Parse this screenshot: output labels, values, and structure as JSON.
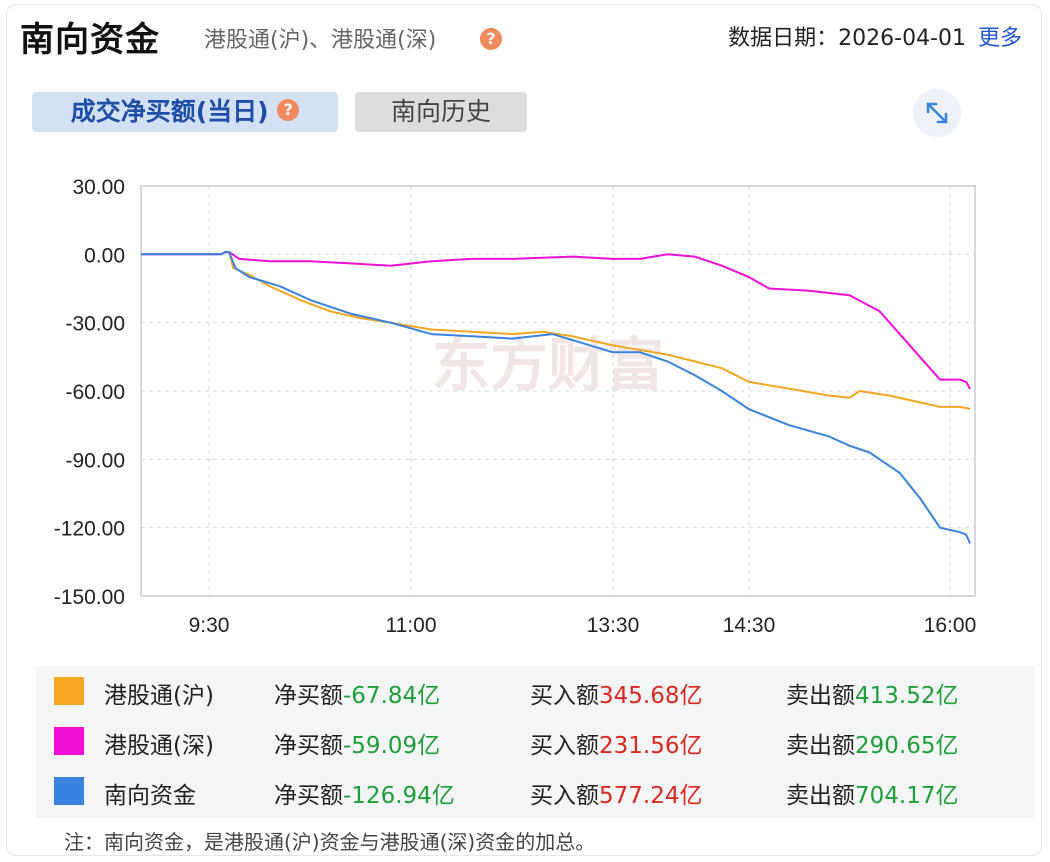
{
  "header": {
    "title": "南向资金",
    "subtitle": "港股通(沪)、港股通(深)",
    "date_label": "数据日期：2026-04-01",
    "more": "更多"
  },
  "tabs": [
    {
      "label": "成交净买额(当日)",
      "active": true
    },
    {
      "label": "南向历史",
      "active": false
    }
  ],
  "watermark": "东方财富",
  "legend": [
    {
      "name": "港股通(沪)",
      "color": "#f5a623",
      "net_label": "净买额",
      "net_value": "-67.84亿",
      "buy_label": "买入额",
      "buy_value": "345.68亿",
      "sell_label": "卖出额",
      "sell_value": "413.52亿"
    },
    {
      "name": "港股通(深)",
      "color": "#f00fd6",
      "net_label": "净买额",
      "net_value": "-59.09亿",
      "buy_label": "买入额",
      "buy_value": "231.56亿",
      "sell_label": "卖出额",
      "sell_value": "290.65亿"
    },
    {
      "name": "南向资金",
      "color": "#3a82e0",
      "net_label": "净买额",
      "net_value": "-126.94亿",
      "buy_label": "买入额",
      "buy_value": "577.24亿",
      "sell_label": "卖出额",
      "sell_value": "704.17亿"
    }
  ],
  "note": "注：南向资金，是港股通(沪)资金与港股通(深)资金的加总。",
  "chart_data": {
    "type": "line",
    "x_ticks": [
      "9:30",
      "11:00",
      "13:30",
      "14:30",
      "16:00"
    ],
    "y_ticks": [
      "30.00",
      "0.00",
      "-30.00",
      "-60.00",
      "-90.00",
      "-120.00",
      "-150.00"
    ],
    "ylim": [
      -150,
      30
    ],
    "grid": true,
    "series": [
      {
        "name": "港股通(沪)",
        "color": "#f5a623",
        "points": [
          [
            0,
            0
          ],
          [
            0.06,
            0
          ],
          [
            0.08,
            1
          ],
          [
            0.1,
            1
          ],
          [
            0.12,
            -6
          ],
          [
            0.2,
            -9
          ],
          [
            0.3,
            -14
          ],
          [
            0.45,
            -20
          ],
          [
            0.6,
            -25
          ],
          [
            0.75,
            -28
          ],
          [
            0.9,
            -30
          ],
          [
            1.1,
            -33
          ],
          [
            1.3,
            -34
          ],
          [
            1.5,
            -35
          ],
          [
            1.65,
            -34
          ],
          [
            1.8,
            -36
          ],
          [
            2.0,
            -40
          ],
          [
            2.2,
            -42
          ],
          [
            2.4,
            -44
          ],
          [
            2.6,
            -47
          ],
          [
            2.8,
            -50
          ],
          [
            3.0,
            -56
          ],
          [
            3.2,
            -59
          ],
          [
            3.4,
            -62
          ],
          [
            3.5,
            -63
          ],
          [
            3.55,
            -60
          ],
          [
            3.7,
            -62
          ],
          [
            3.85,
            -65
          ],
          [
            3.95,
            -67
          ],
          [
            4.05,
            -67
          ],
          [
            4.1,
            -67.84
          ]
        ]
      },
      {
        "name": "港股通(深)",
        "color": "#f00fd6",
        "points": [
          [
            0,
            0
          ],
          [
            0.06,
            0
          ],
          [
            0.08,
            1
          ],
          [
            0.1,
            1
          ],
          [
            0.15,
            -2
          ],
          [
            0.3,
            -3
          ],
          [
            0.5,
            -3
          ],
          [
            0.7,
            -4
          ],
          [
            0.9,
            -5
          ],
          [
            1.1,
            -3
          ],
          [
            1.3,
            -2
          ],
          [
            1.5,
            -2
          ],
          [
            1.8,
            -1
          ],
          [
            2.0,
            -2
          ],
          [
            2.2,
            -2
          ],
          [
            2.4,
            0
          ],
          [
            2.6,
            -1
          ],
          [
            2.8,
            -5
          ],
          [
            3.0,
            -10
          ],
          [
            3.1,
            -15
          ],
          [
            3.3,
            -16
          ],
          [
            3.5,
            -18
          ],
          [
            3.65,
            -25
          ],
          [
            3.8,
            -40
          ],
          [
            3.9,
            -50
          ],
          [
            3.95,
            -55
          ],
          [
            4.05,
            -55
          ],
          [
            4.08,
            -56
          ],
          [
            4.1,
            -59.09
          ]
        ]
      },
      {
        "name": "南向资金",
        "color": "#3a82e0",
        "points": [
          [
            0,
            0
          ],
          [
            0.06,
            0
          ],
          [
            0.08,
            1
          ],
          [
            0.1,
            1
          ],
          [
            0.13,
            -6
          ],
          [
            0.2,
            -10
          ],
          [
            0.35,
            -14
          ],
          [
            0.5,
            -20
          ],
          [
            0.7,
            -26
          ],
          [
            0.9,
            -30
          ],
          [
            1.1,
            -35
          ],
          [
            1.3,
            -36
          ],
          [
            1.5,
            -37
          ],
          [
            1.7,
            -35
          ],
          [
            1.85,
            -39
          ],
          [
            2.0,
            -43
          ],
          [
            2.2,
            -43
          ],
          [
            2.4,
            -47
          ],
          [
            2.6,
            -53
          ],
          [
            2.8,
            -60
          ],
          [
            3.0,
            -68
          ],
          [
            3.2,
            -75
          ],
          [
            3.4,
            -80
          ],
          [
            3.5,
            -84
          ],
          [
            3.6,
            -87
          ],
          [
            3.75,
            -96
          ],
          [
            3.85,
            -107
          ],
          [
            3.95,
            -120
          ],
          [
            4.05,
            -122
          ],
          [
            4.08,
            -123
          ],
          [
            4.1,
            -126.94
          ]
        ]
      }
    ]
  }
}
